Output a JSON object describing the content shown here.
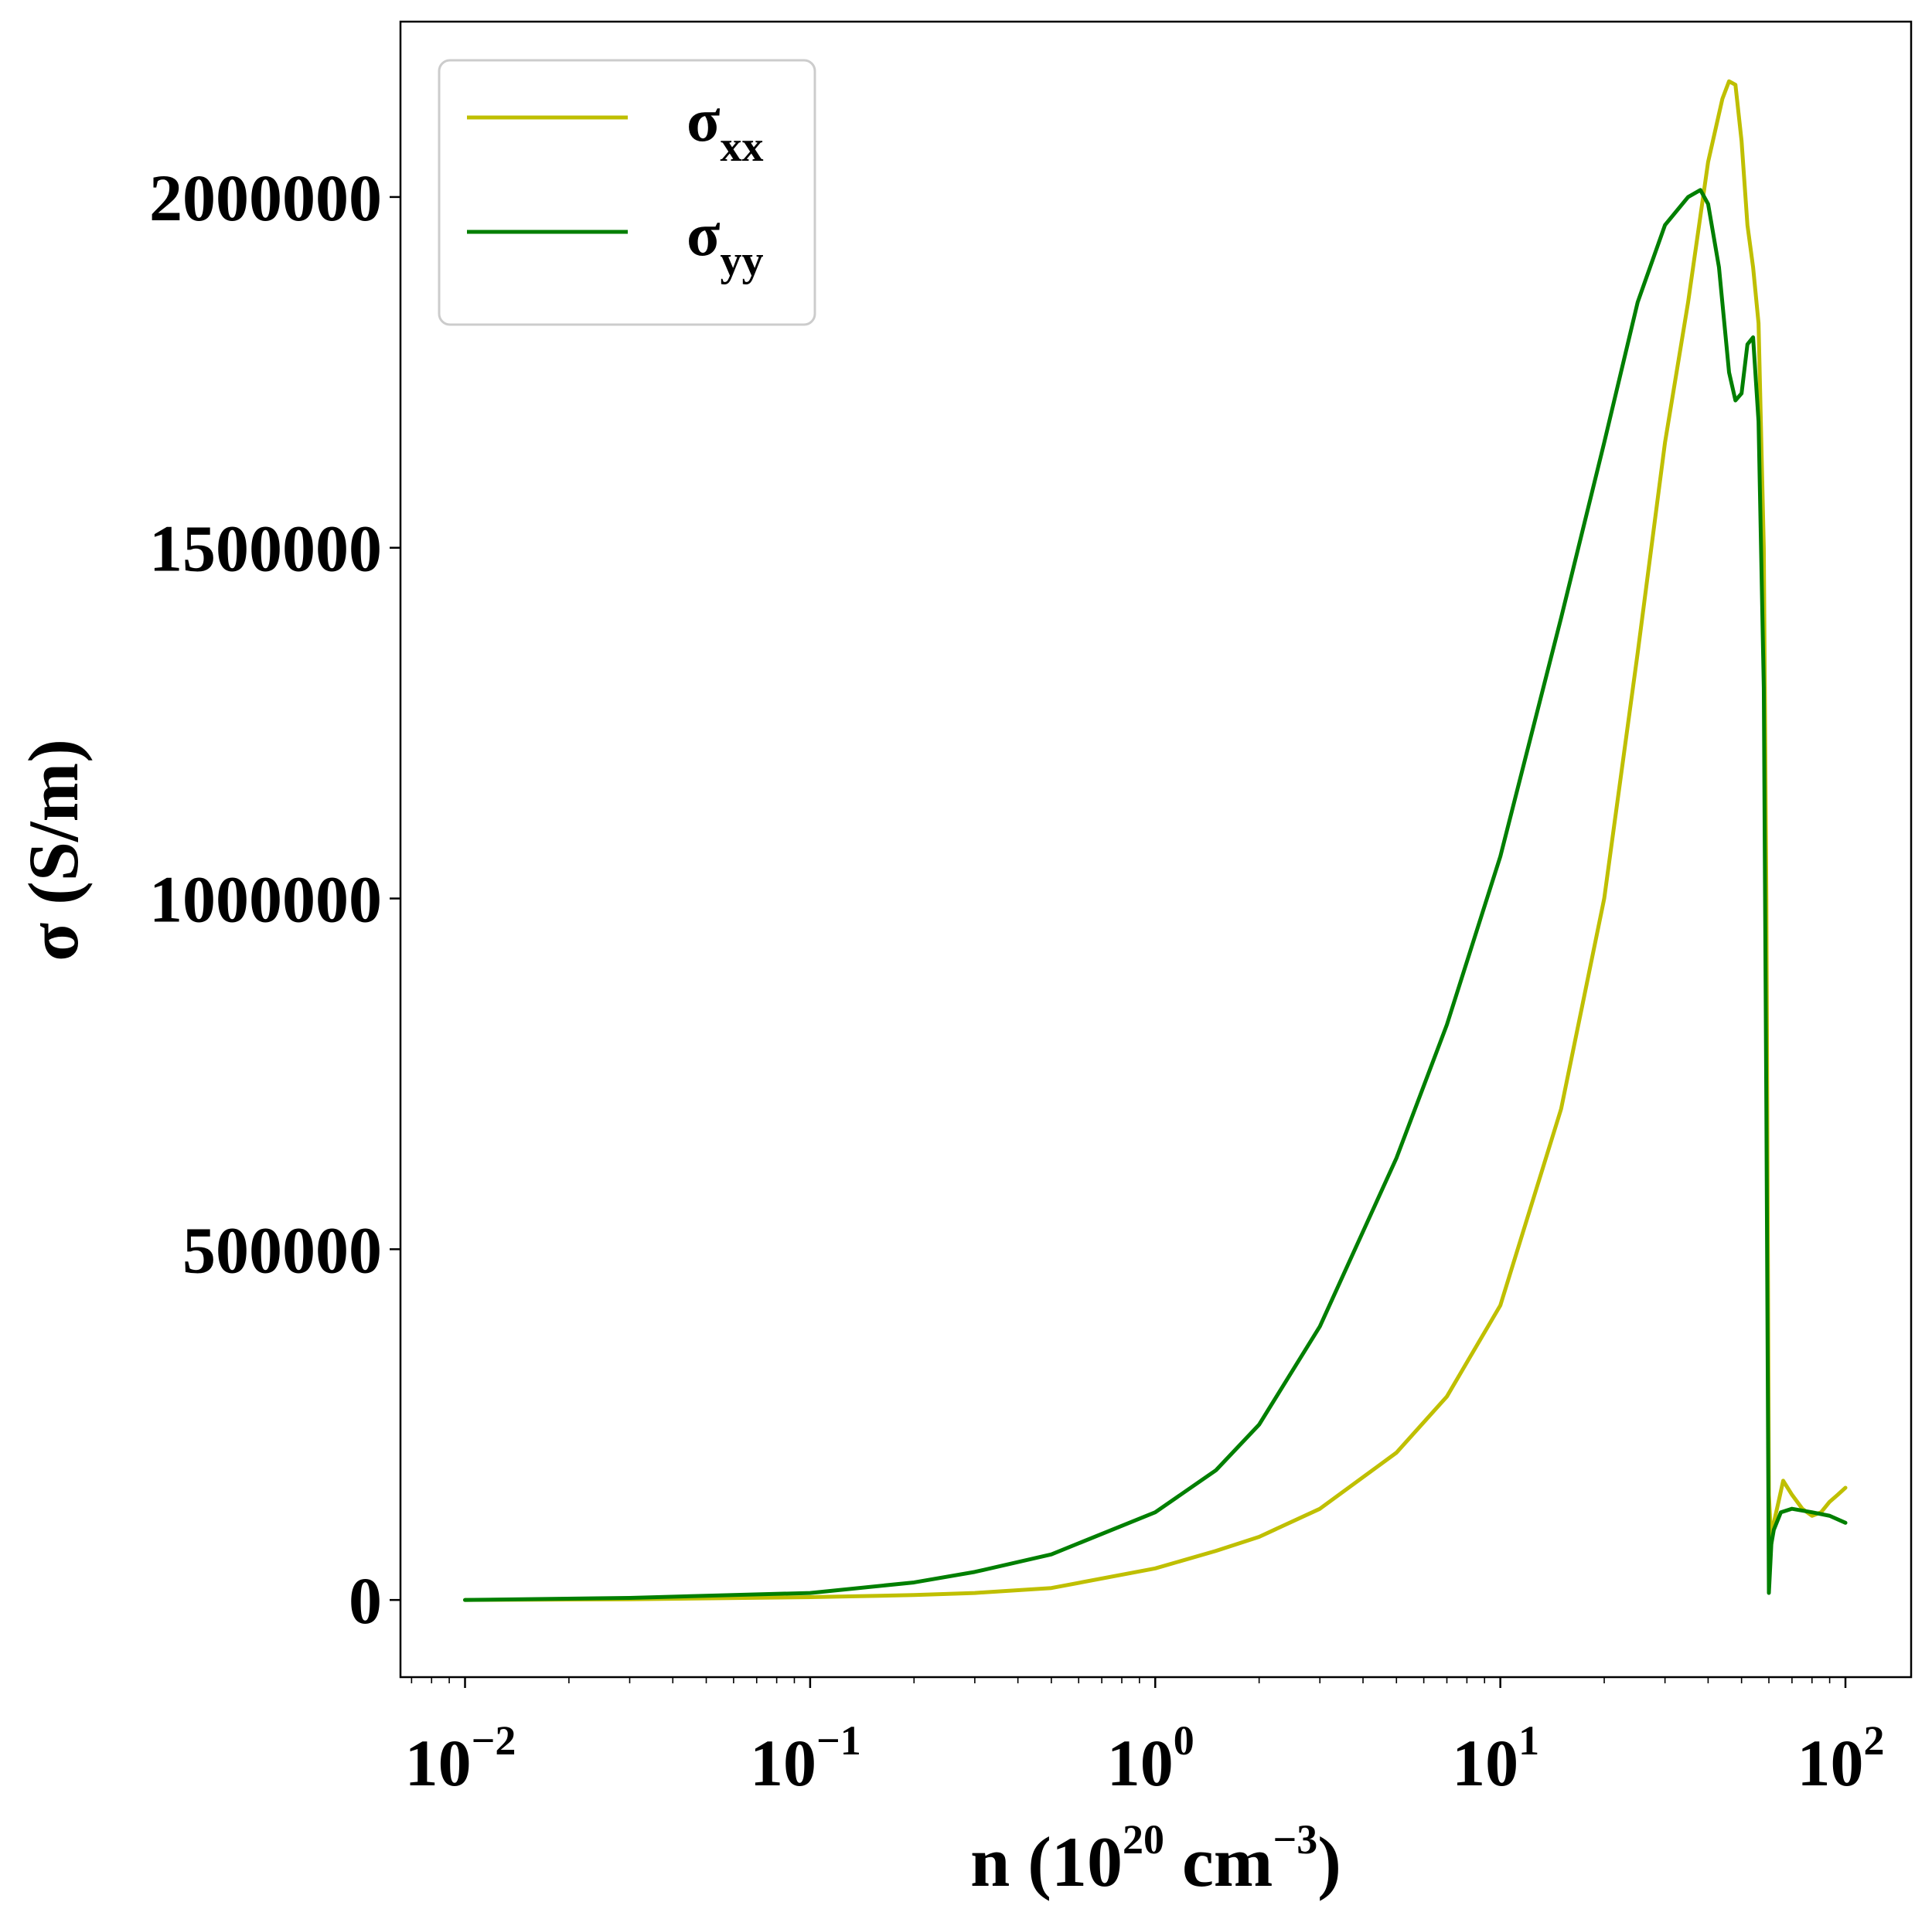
{
  "chart_data": {
    "type": "line",
    "xscale": "log",
    "xlim": [
      0.0065,
      155
    ],
    "ylim": [
      -110000,
      2250000
    ],
    "grid": false,
    "legend_position": "top-left",
    "xlabel": "n (10²⁰ cm⁻³)",
    "ylabel": "σ (S/m)",
    "xlabel_parts": {
      "main": "n (10",
      "exp1": "20",
      "mid": " cm",
      "exp2": "−3",
      "end": ")"
    },
    "y_ticks": [
      {
        "value": 0,
        "label": "0"
      },
      {
        "value": 500000,
        "label": "500000"
      },
      {
        "value": 1000000,
        "label": "1000000"
      },
      {
        "value": 1500000,
        "label": "1500000"
      },
      {
        "value": 2000000,
        "label": "2000000"
      }
    ],
    "x_ticks": [
      {
        "value": 0.01,
        "base": "10",
        "exp": "−2"
      },
      {
        "value": 0.1,
        "base": "10",
        "exp": "−1"
      },
      {
        "value": 1,
        "base": "10",
        "exp": "0"
      },
      {
        "value": 10,
        "base": "10",
        "exp": "1"
      },
      {
        "value": 100,
        "base": "10",
        "exp": "2"
      }
    ],
    "series": [
      {
        "name": "σxx",
        "name_base": "σ",
        "name_sub": "xx",
        "color": "#bfbf00",
        "points": [
          [
            0.01,
            0
          ],
          [
            0.03,
            1000
          ],
          [
            0.1,
            4000
          ],
          [
            0.2,
            7000
          ],
          [
            0.3,
            10000
          ],
          [
            0.5,
            17000
          ],
          [
            1.0,
            45000
          ],
          [
            1.5,
            70000
          ],
          [
            2.0,
            90000
          ],
          [
            3.0,
            130000
          ],
          [
            5.0,
            210000
          ],
          [
            7.0,
            290000
          ],
          [
            10.0,
            420000
          ],
          [
            15.0,
            700000
          ],
          [
            20.0,
            1000000
          ],
          [
            25.0,
            1350000
          ],
          [
            30.0,
            1650000
          ],
          [
            35.0,
            1850000
          ],
          [
            40.0,
            2050000
          ],
          [
            44.0,
            2140000
          ],
          [
            46.0,
            2165000
          ],
          [
            48.0,
            2160000
          ],
          [
            50.0,
            2080000
          ],
          [
            52.0,
            1960000
          ],
          [
            54.0,
            1900000
          ],
          [
            56.0,
            1820000
          ],
          [
            58.0,
            1500000
          ],
          [
            59.0,
            1000000
          ],
          [
            60.0,
            150000
          ],
          [
            61.0,
            80000
          ],
          [
            62.0,
            110000
          ],
          [
            64.0,
            140000
          ],
          [
            66.0,
            170000
          ],
          [
            70.0,
            150000
          ],
          [
            75.0,
            130000
          ],
          [
            80.0,
            120000
          ],
          [
            85.0,
            125000
          ],
          [
            90.0,
            140000
          ],
          [
            95.0,
            150000
          ],
          [
            100.0,
            160000
          ]
        ]
      },
      {
        "name": "σyy",
        "name_base": "σ",
        "name_sub": "yy",
        "color": "#007f00",
        "points": [
          [
            0.01,
            0
          ],
          [
            0.03,
            3000
          ],
          [
            0.1,
            10000
          ],
          [
            0.2,
            25000
          ],
          [
            0.3,
            40000
          ],
          [
            0.5,
            65000
          ],
          [
            1.0,
            125000
          ],
          [
            1.5,
            185000
          ],
          [
            2.0,
            250000
          ],
          [
            3.0,
            390000
          ],
          [
            5.0,
            630000
          ],
          [
            7.0,
            820000
          ],
          [
            10.0,
            1060000
          ],
          [
            15.0,
            1400000
          ],
          [
            20.0,
            1650000
          ],
          [
            25.0,
            1850000
          ],
          [
            30.0,
            1960000
          ],
          [
            35.0,
            2000000
          ],
          [
            38.0,
            2010000
          ],
          [
            40.0,
            1990000
          ],
          [
            43.0,
            1900000
          ],
          [
            46.0,
            1750000
          ],
          [
            48.0,
            1710000
          ],
          [
            50.0,
            1720000
          ],
          [
            52.0,
            1790000
          ],
          [
            54.0,
            1800000
          ],
          [
            56.0,
            1680000
          ],
          [
            58.0,
            1300000
          ],
          [
            59.0,
            700000
          ],
          [
            60.0,
            10000
          ],
          [
            61.0,
            80000
          ],
          [
            62.0,
            100000
          ],
          [
            65.0,
            125000
          ],
          [
            70.0,
            130000
          ],
          [
            80.0,
            125000
          ],
          [
            90.0,
            120000
          ],
          [
            100.0,
            110000
          ]
        ]
      }
    ]
  }
}
